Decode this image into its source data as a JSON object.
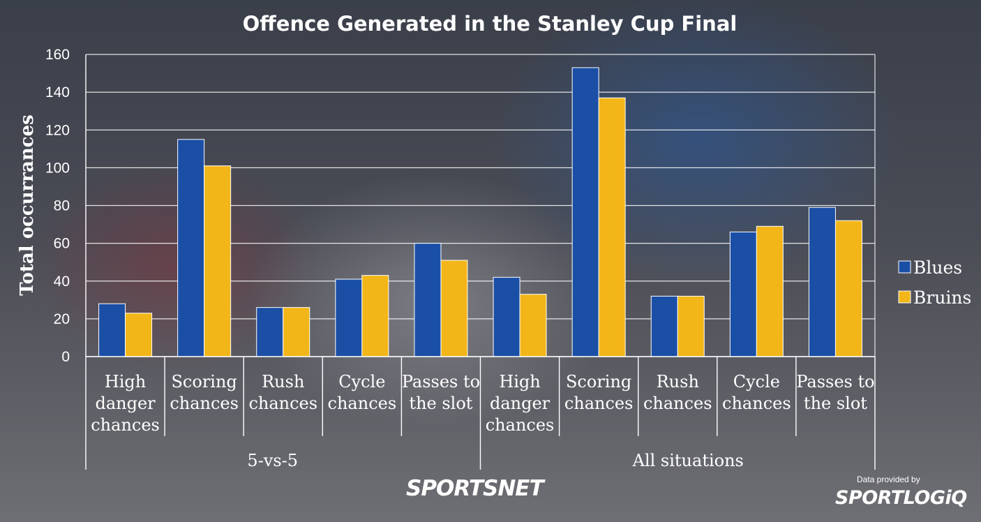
{
  "chart_data": {
    "type": "bar",
    "title": "Offence Generated in the Stanley Cup Final",
    "ylabel": "Total occurrances",
    "ylim": [
      0,
      160
    ],
    "yticks": [
      0,
      20,
      40,
      60,
      80,
      100,
      120,
      140,
      160
    ],
    "grid": true,
    "legend_position": "right",
    "groups": [
      {
        "label": "5-vs-5",
        "categories": [
          [
            "High",
            "danger",
            "chances"
          ],
          [
            "Scoring",
            "chances"
          ],
          [
            "Rush",
            "chances"
          ],
          [
            "Cycle",
            "chances"
          ],
          [
            "Passes to",
            "the slot"
          ]
        ]
      },
      {
        "label": "All situations",
        "categories": [
          [
            "High",
            "danger",
            "chances"
          ],
          [
            "Scoring",
            "chances"
          ],
          [
            "Rush",
            "chances"
          ],
          [
            "Cycle",
            "chances"
          ],
          [
            "Passes to",
            "the slot"
          ]
        ]
      }
    ],
    "series": [
      {
        "name": "Blues",
        "color": "#1b4fa6",
        "values": [
          28,
          115,
          26,
          41,
          60,
          42,
          153,
          32,
          66,
          79
        ]
      },
      {
        "name": "Bruins",
        "color": "#f2b619",
        "values": [
          23,
          101,
          26,
          43,
          51,
          33,
          137,
          32,
          69,
          72
        ]
      }
    ]
  },
  "branding": {
    "sportsnet": "SPORTSNET",
    "provided_by": "Data provided by",
    "sportlogiq": "SPORTLOGiQ"
  }
}
